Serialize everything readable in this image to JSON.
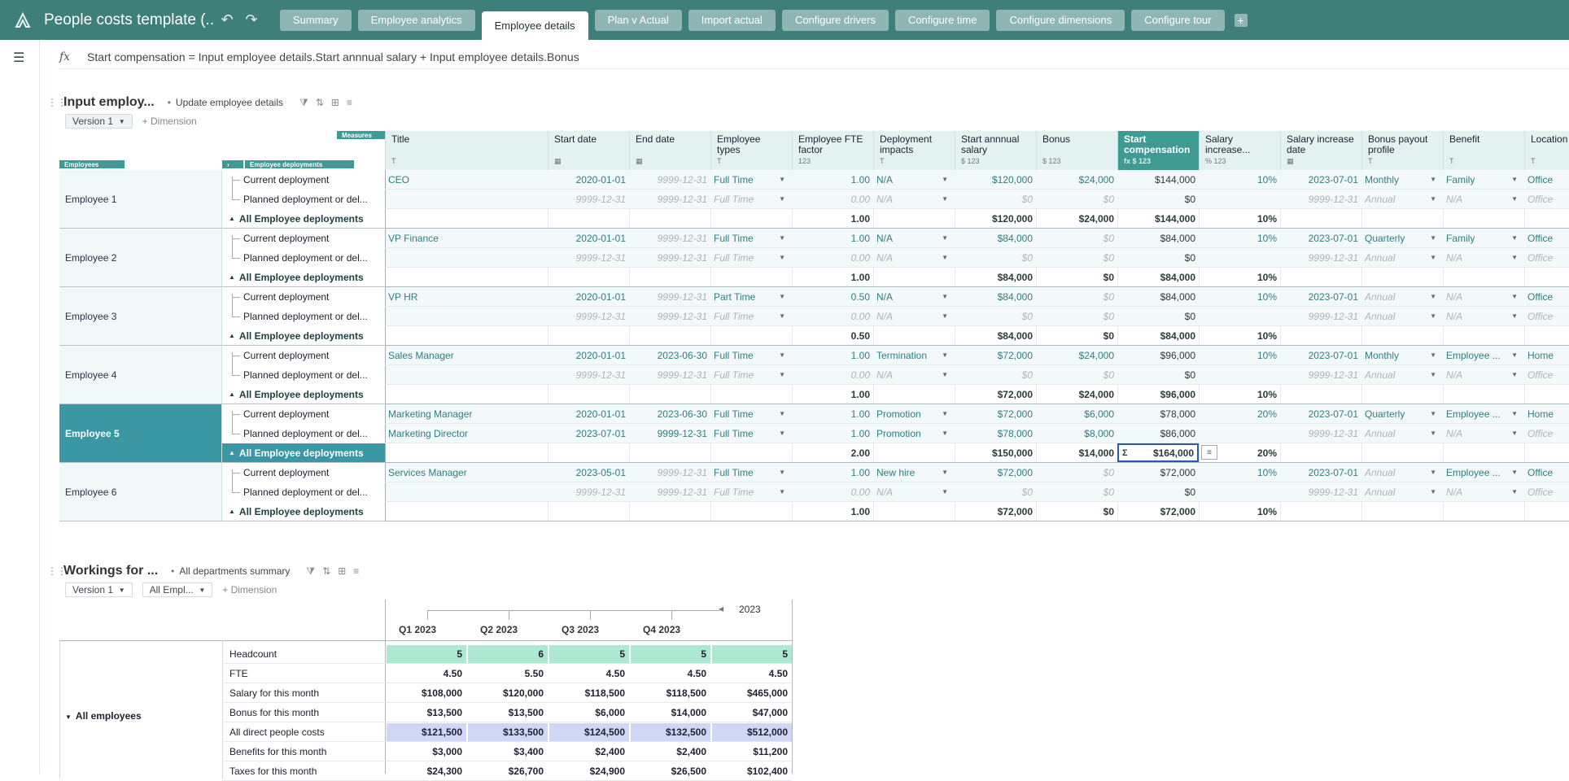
{
  "app": {
    "title": "People costs template (...",
    "undo_label": "↶",
    "redo_label": "↷",
    "tabs": [
      "Summary",
      "Employee analytics",
      "Employee details",
      "Plan v Actual",
      "Import actual",
      "Configure drivers",
      "Configure time",
      "Configure dimensions",
      "Configure tour"
    ],
    "active_tab": "Employee details",
    "add_tab": "+"
  },
  "formula": {
    "fx": "fx",
    "text": "Start compensation = Input employee details.Start annnual salary + Input employee details.Bonus"
  },
  "module1": {
    "title": "Input employ...",
    "subtitle": "Update employee details",
    "version": "Version 1",
    "add_dimension": "+ Dimension",
    "measures_label": "Measures",
    "employees_label": "Employees",
    "deployments_label": "Employee deployments",
    "columns": [
      {
        "label": "Title",
        "sub": "T"
      },
      {
        "label": "Start date",
        "sub": "▦"
      },
      {
        "label": "End date",
        "sub": "▦"
      },
      {
        "label": "Employee types",
        "sub": "T"
      },
      {
        "label": "Employee FTE factor",
        "sub": "123"
      },
      {
        "label": "Deployment impacts",
        "sub": "T"
      },
      {
        "label": "Start annnual salary",
        "sub": "$ 123"
      },
      {
        "label": "Bonus",
        "sub": "$ 123"
      },
      {
        "label": "Start compensation",
        "sub": "fx $ 123"
      },
      {
        "label": "Salary increase...",
        "sub": "% 123"
      },
      {
        "label": "Salary increase date",
        "sub": "▦"
      },
      {
        "label": "Bonus payout profile",
        "sub": "T"
      },
      {
        "label": "Benefit",
        "sub": "T"
      },
      {
        "label": "Location",
        "sub": "T"
      }
    ],
    "employees": [
      {
        "name": "Employee 1",
        "rows": [
          {
            "dep": "Current deployment",
            "v": [
              "CEO",
              "2020-01-01",
              "9999-12-31",
              "Full Time",
              "1.00",
              "N/A",
              "$120,000",
              "$24,000",
              "$144,000",
              "10%",
              "2023-07-01",
              "Monthly",
              "Family",
              "Office"
            ]
          },
          {
            "dep": "Planned deployment or del...",
            "v": [
              "",
              "9999-12-31",
              "9999-12-31",
              "Full Time",
              "0.00",
              "N/A",
              "$0",
              "$0",
              "$0",
              "",
              "9999-12-31",
              "Annual",
              "N/A",
              "Office"
            ]
          },
          {
            "dep": "All Employee deployments",
            "v": [
              "",
              "",
              "",
              "",
              "1.00",
              "",
              "$120,000",
              "$24,000",
              "$144,000",
              "10%",
              "",
              "",
              "",
              ""
            ]
          }
        ]
      },
      {
        "name": "Employee 2",
        "rows": [
          {
            "dep": "Current deployment",
            "v": [
              "VP Finance",
              "2020-01-01",
              "9999-12-31",
              "Full Time",
              "1.00",
              "N/A",
              "$84,000",
              "$0",
              "$84,000",
              "10%",
              "2023-07-01",
              "Quarterly",
              "Family",
              "Office"
            ]
          },
          {
            "dep": "Planned deployment or del...",
            "v": [
              "",
              "9999-12-31",
              "9999-12-31",
              "Full Time",
              "0.00",
              "N/A",
              "$0",
              "$0",
              "$0",
              "",
              "9999-12-31",
              "Annual",
              "N/A",
              "Office"
            ]
          },
          {
            "dep": "All Employee deployments",
            "v": [
              "",
              "",
              "",
              "",
              "1.00",
              "",
              "$84,000",
              "$0",
              "$84,000",
              "10%",
              "",
              "",
              "",
              ""
            ]
          }
        ]
      },
      {
        "name": "Employee 3",
        "rows": [
          {
            "dep": "Current deployment",
            "v": [
              "VP HR",
              "2020-01-01",
              "9999-12-31",
              "Part Time",
              "0.50",
              "N/A",
              "$84,000",
              "$0",
              "$84,000",
              "10%",
              "2023-07-01",
              "Annual",
              "N/A",
              "Office"
            ]
          },
          {
            "dep": "Planned deployment or del...",
            "v": [
              "",
              "9999-12-31",
              "9999-12-31",
              "Full Time",
              "0.00",
              "N/A",
              "$0",
              "$0",
              "$0",
              "",
              "9999-12-31",
              "Annual",
              "N/A",
              "Office"
            ]
          },
          {
            "dep": "All Employee deployments",
            "v": [
              "",
              "",
              "",
              "",
              "0.50",
              "",
              "$84,000",
              "$0",
              "$84,000",
              "10%",
              "",
              "",
              "",
              ""
            ]
          }
        ]
      },
      {
        "name": "Employee 4",
        "rows": [
          {
            "dep": "Current deployment",
            "v": [
              "Sales Manager",
              "2020-01-01",
              "2023-06-30",
              "Full Time",
              "1.00",
              "Termination",
              "$72,000",
              "$24,000",
              "$96,000",
              "10%",
              "2023-07-01",
              "Monthly",
              "Employee ...",
              "Home"
            ]
          },
          {
            "dep": "Planned deployment or del...",
            "v": [
              "",
              "9999-12-31",
              "9999-12-31",
              "Full Time",
              "0.00",
              "N/A",
              "$0",
              "$0",
              "$0",
              "",
              "9999-12-31",
              "Annual",
              "N/A",
              "Office"
            ]
          },
          {
            "dep": "All Employee deployments",
            "v": [
              "",
              "",
              "",
              "",
              "1.00",
              "",
              "$72,000",
              "$24,000",
              "$96,000",
              "10%",
              "",
              "",
              "",
              ""
            ]
          }
        ]
      },
      {
        "name": "Employee 5",
        "rows": [
          {
            "dep": "Current deployment",
            "v": [
              "Marketing Manager",
              "2020-01-01",
              "2023-06-30",
              "Full Time",
              "1.00",
              "Promotion",
              "$72,000",
              "$6,000",
              "$78,000",
              "20%",
              "2023-07-01",
              "Quarterly",
              "Employee ...",
              "Home"
            ]
          },
          {
            "dep": "Planned deployment or del...",
            "v": [
              "Marketing Director",
              "2023-07-01",
              "9999-12-31",
              "Full Time",
              "1.00",
              "Promotion",
              "$78,000",
              "$8,000",
              "$86,000",
              "",
              "9999-12-31",
              "Annual",
              "N/A",
              "Office"
            ]
          },
          {
            "dep": "All Employee deployments",
            "v": [
              "",
              "",
              "",
              "",
              "2.00",
              "",
              "$150,000",
              "$14,000",
              "$164,000",
              "20%",
              "",
              "",
              "",
              ""
            ]
          }
        ]
      },
      {
        "name": "Employee 6",
        "rows": [
          {
            "dep": "Current deployment",
            "v": [
              "Services Manager",
              "2023-05-01",
              "9999-12-31",
              "Full Time",
              "1.00",
              "New hire",
              "$72,000",
              "$0",
              "$72,000",
              "10%",
              "2023-07-01",
              "Annual",
              "Employee ...",
              "Office"
            ]
          },
          {
            "dep": "Planned deployment or del...",
            "v": [
              "",
              "9999-12-31",
              "9999-12-31",
              "Full Time",
              "0.00",
              "N/A",
              "$0",
              "$0",
              "$0",
              "",
              "9999-12-31",
              "Annual",
              "N/A",
              "Office"
            ]
          },
          {
            "dep": "All Employee deployments",
            "v": [
              "",
              "",
              "",
              "",
              "1.00",
              "",
              "$72,000",
              "$0",
              "$72,000",
              "10%",
              "",
              "",
              "",
              ""
            ]
          }
        ]
      }
    ]
  },
  "module2": {
    "title": "Workings for ...",
    "subtitle": "All departments summary",
    "version": "Version 1",
    "emp_filter": "All Empl...",
    "add_dimension": "+ Dimension",
    "year": "2023",
    "quarters": [
      "Q1 2023",
      "Q2 2023",
      "Q3 2023",
      "Q4 2023"
    ],
    "group": "All employees",
    "rows": [
      {
        "label": "Headcount",
        "v": [
          "5",
          "6",
          "5",
          "5",
          "5"
        ],
        "style": "mint"
      },
      {
        "label": "FTE",
        "v": [
          "4.50",
          "5.50",
          "4.50",
          "4.50",
          "4.50"
        ],
        "style": ""
      },
      {
        "label": "Salary for this month",
        "v": [
          "$108,000",
          "$120,000",
          "$118,500",
          "$118,500",
          "$465,000"
        ],
        "style": ""
      },
      {
        "label": "Bonus for this month",
        "v": [
          "$13,500",
          "$13,500",
          "$6,000",
          "$14,000",
          "$47,000"
        ],
        "style": ""
      },
      {
        "label": "All direct people costs",
        "v": [
          "$121,500",
          "$133,500",
          "$124,500",
          "$132,500",
          "$512,000"
        ],
        "style": "lav"
      },
      {
        "label": "Benefits for this month",
        "v": [
          "$3,000",
          "$3,400",
          "$2,400",
          "$2,400",
          "$11,200"
        ],
        "style": ""
      },
      {
        "label": "Taxes for this month",
        "v": [
          "$24,300",
          "$26,700",
          "$24,900",
          "$26,500",
          "$102,400"
        ],
        "style": ""
      }
    ]
  }
}
